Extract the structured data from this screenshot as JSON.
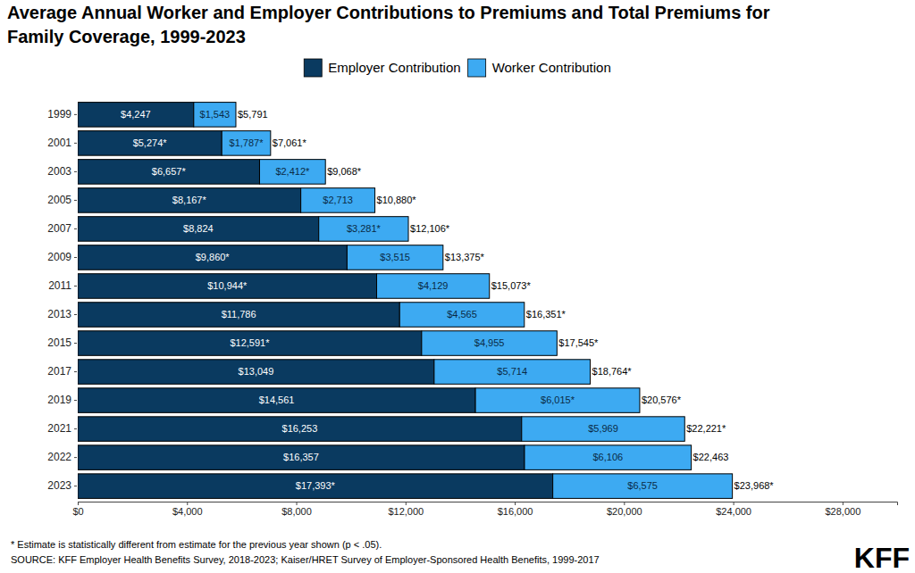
{
  "chart_data": {
    "type": "bar",
    "orientation": "horizontal",
    "stacked": true,
    "data_labels": true,
    "grid": false,
    "legend": "top",
    "title": [
      "Average Annual Worker and Employer Contributions to Premiums and Total Premiums for",
      "Family Coverage, 1999-2023"
    ],
    "categories": [
      "1999",
      "2001",
      "2003",
      "2005",
      "2007",
      "2009",
      "2011",
      "2013",
      "2015",
      "2017",
      "2019",
      "2021",
      "2022",
      "2023"
    ],
    "series": [
      {
        "name": "Employer Contribution",
        "color": "#0a3a60",
        "values": [
          4247,
          5274,
          6657,
          8167,
          8824,
          9860,
          10944,
          11786,
          12591,
          13049,
          14561,
          16253,
          16357,
          17393
        ],
        "value_labels": [
          "$4,247",
          "$5,274*",
          "$6,657*",
          "$8,167*",
          "$8,824",
          "$9,860*",
          "$10,944*",
          "$11,786",
          "$12,591*",
          "$13,049",
          "$14,561",
          "$16,253",
          "$16,357",
          "$17,393*"
        ]
      },
      {
        "name": "Worker Contribution",
        "color": "#3daaf2",
        "values": [
          1543,
          1787,
          2412,
          2713,
          3281,
          3515,
          4129,
          4565,
          4955,
          5714,
          6015,
          5969,
          6106,
          6575
        ],
        "value_labels": [
          "$1,543",
          "$1,787*",
          "$2,412*",
          "$2,713",
          "$3,281*",
          "$3,515",
          "$4,129",
          "$4,565",
          "$4,955",
          "$5,714",
          "$6,015*",
          "$5,969",
          "$6,106",
          "$6,575"
        ]
      }
    ],
    "totals": {
      "values": [
        5791,
        7061,
        9068,
        10880,
        12106,
        13375,
        15073,
        16351,
        17545,
        18764,
        20576,
        22221,
        22463,
        23968
      ],
      "value_labels": [
        "$5,791",
        "$7,061*",
        "$9,068*",
        "$10,880*",
        "$12,106*",
        "$13,375*",
        "$15,073*",
        "$16,351*",
        "$17,545*",
        "$18,764*",
        "$20,576*",
        "$22,221*",
        "$22,463",
        "$23,968*"
      ]
    },
    "xlim": [
      0,
      30000
    ],
    "xticks": [
      {
        "value": 0,
        "label": "$0"
      },
      {
        "value": 4000,
        "label": "$4,000"
      },
      {
        "value": 8000,
        "label": "$8,000"
      },
      {
        "value": 12000,
        "label": "$12,000"
      },
      {
        "value": 16000,
        "label": "$16,000"
      },
      {
        "value": 20000,
        "label": "$20,000"
      },
      {
        "value": 24000,
        "label": "$24,000"
      },
      {
        "value": 28000,
        "label": "$28,000"
      }
    ],
    "footnote": "* Estimate is statistically different from estimate for the previous year shown (p < .05).",
    "source": "SOURCE: KFF Employer Health Benefits Survey, 2018-2023; Kaiser/HRET Survey of Employer-Sponsored Health Benefits, 1999-2017",
    "brand": "KFF"
  }
}
